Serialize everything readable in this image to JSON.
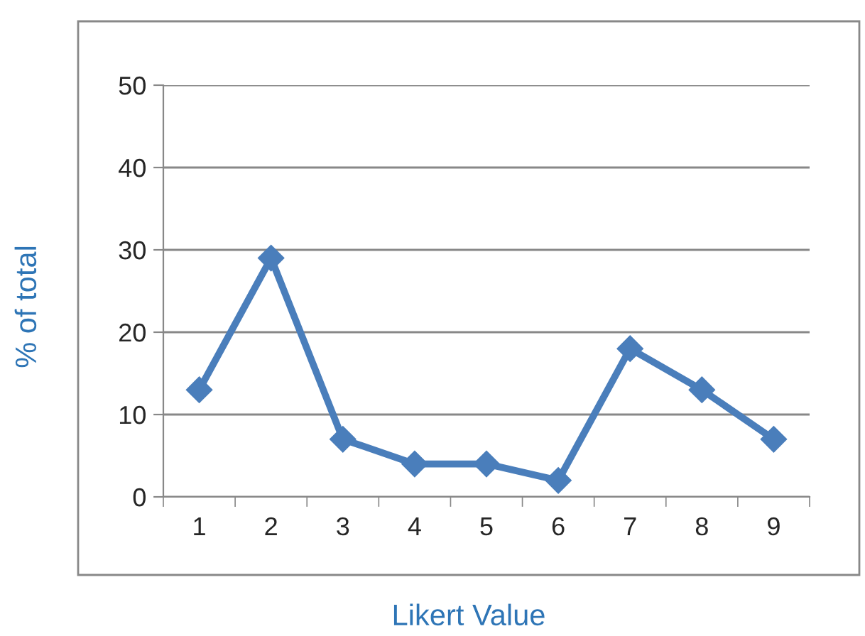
{
  "chart_data": {
    "type": "line",
    "xlabel": "Likert Value",
    "ylabel": "% of total",
    "categories": [
      "1",
      "2",
      "3",
      "4",
      "5",
      "6",
      "7",
      "8",
      "9"
    ],
    "series": [
      {
        "color": "#4a7ebb",
        "values": [
          13,
          29,
          7,
          4,
          4,
          2,
          18,
          13,
          7
        ]
      }
    ],
    "ylim": [
      0,
      50
    ],
    "yticks": [
      0,
      10,
      20,
      30,
      40,
      50
    ],
    "grid": "y",
    "marker": "diamond",
    "line_style": "solid"
  }
}
